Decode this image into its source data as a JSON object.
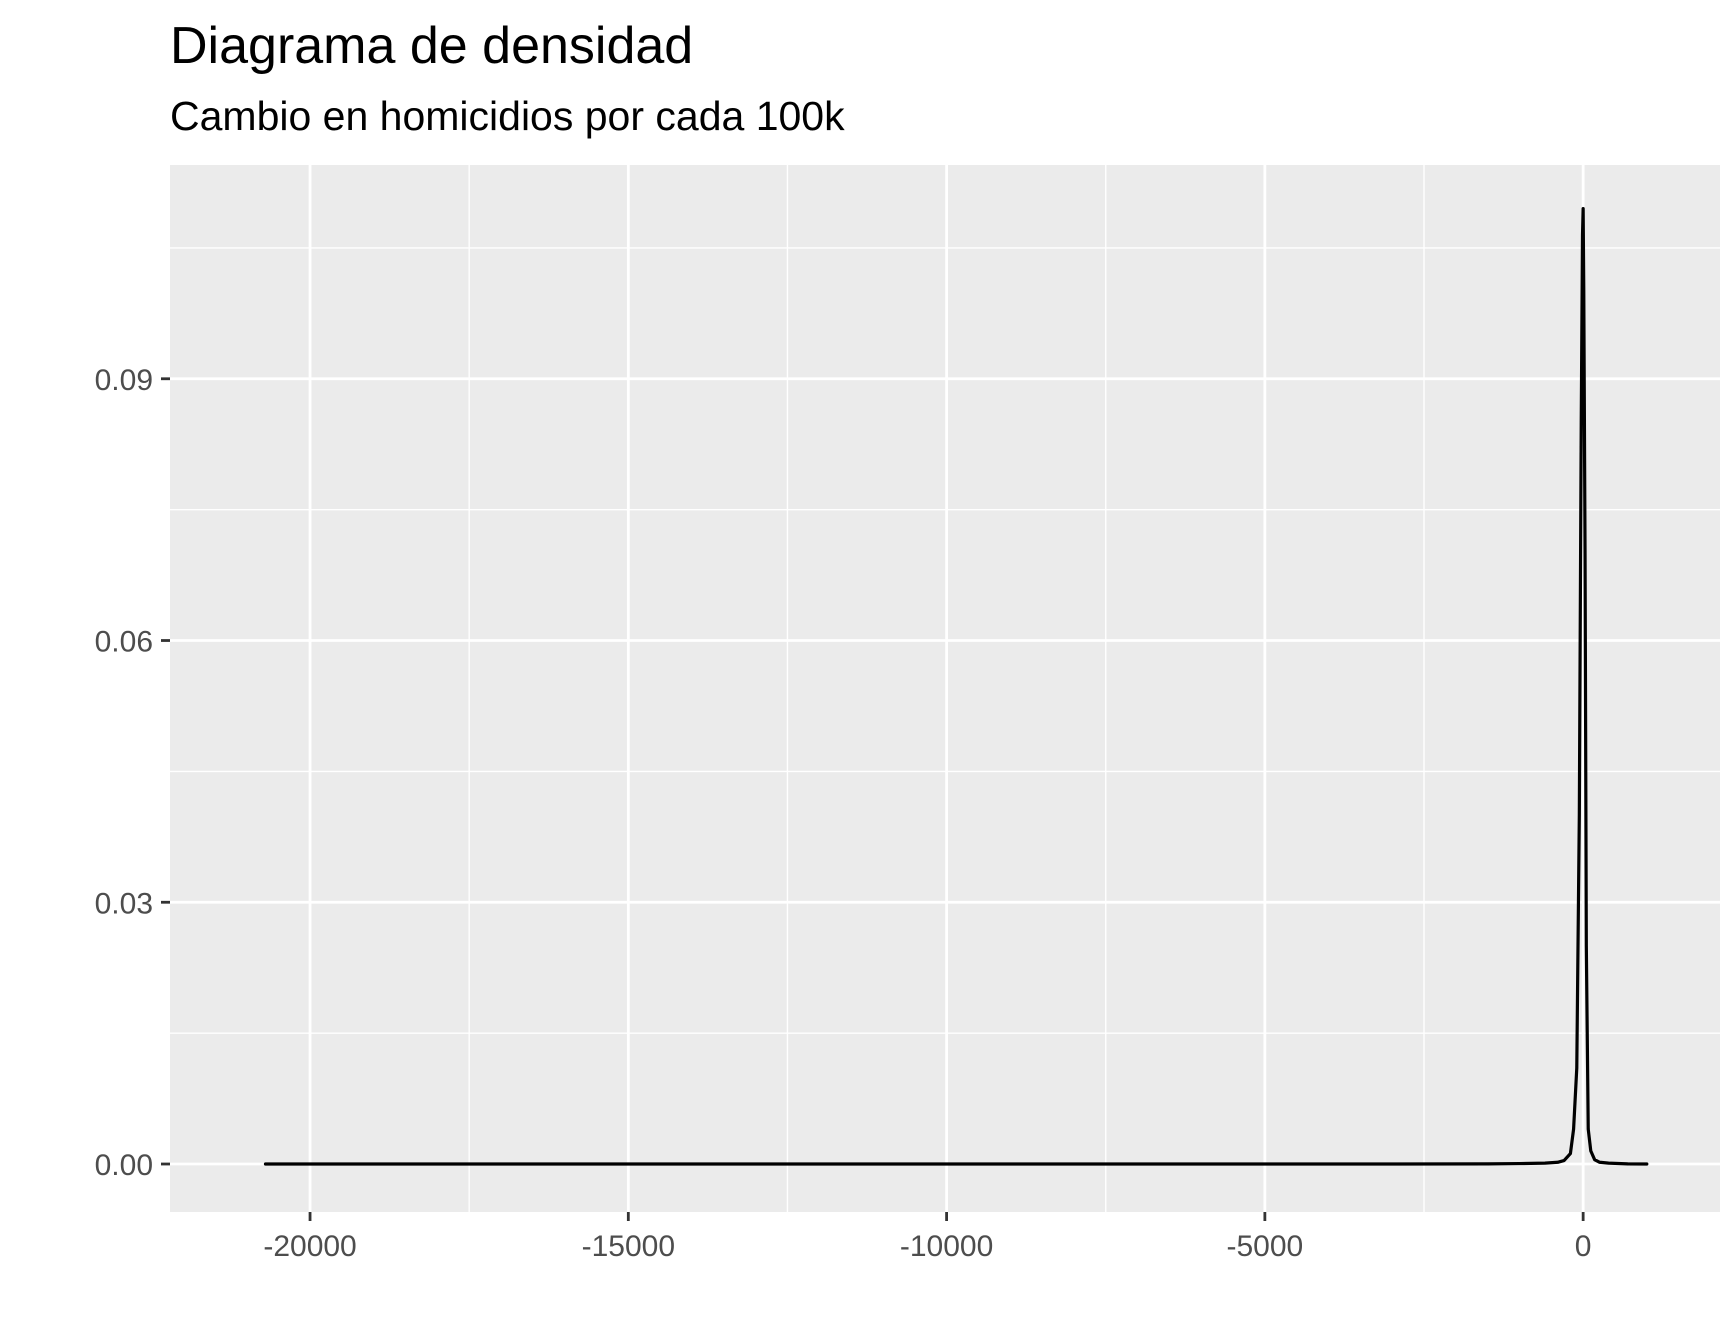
{
  "chart_data": {
    "type": "area",
    "title": "Diagrama de densidad",
    "subtitle": "Cambio en homicidios por cada 100k",
    "xlabel": "",
    "ylabel": "",
    "xlim": [
      -22200,
      2150
    ],
    "ylim": [
      -0.0055,
      0.1145
    ],
    "x_ticks": [
      {
        "value": -20000,
        "label": "-20000"
      },
      {
        "value": -15000,
        "label": "-15000"
      },
      {
        "value": -10000,
        "label": "-10000"
      },
      {
        "value": -5000,
        "label": "-5000"
      },
      {
        "value": 0,
        "label": "0"
      }
    ],
    "x_minor_ticks": [
      -17500,
      -12500,
      -7500,
      -2500
    ],
    "y_ticks": [
      {
        "value": 0.0,
        "label": "0.00"
      },
      {
        "value": 0.03,
        "label": "0.03"
      },
      {
        "value": 0.06,
        "label": "0.06"
      },
      {
        "value": 0.09,
        "label": "0.09"
      }
    ],
    "y_minor_ticks": [
      0.015,
      0.045,
      0.075,
      0.105
    ],
    "grid": true,
    "background": "#ebebeb",
    "line_color": "#000000",
    "series": [
      {
        "x": [
          -20700,
          -18000,
          -15000,
          -12000,
          -9000,
          -6000,
          -3000,
          -1500,
          -1000,
          -600,
          -400,
          -300,
          -200,
          -150,
          -100,
          -60,
          -30,
          -10,
          0,
          10,
          30,
          50,
          80,
          120,
          180,
          260,
          400,
          700,
          1000
        ],
        "values": [
          0.0,
          0.0,
          0.0,
          0.0,
          0.0,
          0.0,
          0.0,
          2e-05,
          5e-05,
          0.0001,
          0.0002,
          0.0004,
          0.0012,
          0.004,
          0.011,
          0.04,
          0.085,
          0.1065,
          0.1095,
          0.1,
          0.07,
          0.025,
          0.004,
          0.0015,
          0.0005,
          0.0002,
          0.0001,
          2e-05,
          0.0
        ]
      }
    ]
  }
}
